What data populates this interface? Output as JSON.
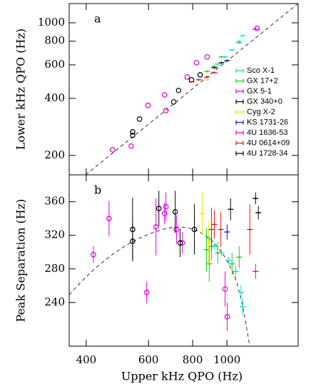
{
  "chart_data": [
    {
      "type": "scatter",
      "panel_label": "a",
      "ylabel": "Lower kHz QPO (Hz)",
      "xlog": true,
      "ylog": true,
      "xlim": [
        358,
        1590
      ],
      "ylim": [
        158,
        1263
      ],
      "yticks": [
        200,
        400,
        600,
        800,
        1000
      ],
      "legend": "right",
      "series": [
        {
          "name": "Sco X-1",
          "color": "#00e0e0",
          "marker": "cross",
          "x": [
            942,
            988,
            1034,
            1083,
            1108
          ],
          "y": [
            606,
            661,
            720,
            799,
            856
          ]
        },
        {
          "name": "GX 17+2",
          "color": "#22cc22",
          "marker": "cross",
          "x": [
            879,
            921,
            965,
            1083
          ],
          "y": [
            555,
            590,
            661,
            785
          ]
        },
        {
          "name": "GX 5-1",
          "color": "#e000e0",
          "marker": "circle",
          "x": [
            475,
            536,
            598,
            672,
            666,
            772,
            820,
            879,
            1216
          ],
          "y": [
            214,
            224,
            367,
            345,
            417,
            518,
            616,
            661,
            934
          ]
        },
        {
          "name": "GX 340+0",
          "color": "#000000",
          "marker": "circle",
          "x": [
            541,
            541,
            566,
            707,
            730,
            794,
            840
          ],
          "y": [
            255,
            266,
            311,
            383,
            440,
            501,
            532
          ]
        },
        {
          "name": "Cyg X-2",
          "color": "#e8e800",
          "marker": "cross",
          "x": [
            879
          ],
          "y": [
            501
          ]
        },
        {
          "name": "KS 1731-26",
          "color": "#1010e0",
          "marker": "cross",
          "x": [
            1001
          ],
          "y": [
            632
          ]
        },
        {
          "name": "4U 1636-53",
          "color": "#d010d0",
          "marker": "cross",
          "x": [
            1205
          ],
          "y": [
            926
          ]
        },
        {
          "name": "4U 0614+09",
          "color": "#ee1010",
          "marker": "cross",
          "x": [
            794,
            832,
            879,
            921
          ],
          "y": [
            488,
            501,
            518,
            546
          ]
        },
        {
          "name": "4U 1728-34",
          "color": "#000000",
          "marker": "cross",
          "x": [
            921,
            965
          ],
          "y": [
            580,
            616
          ]
        }
      ]
    },
    {
      "type": "scatter",
      "panel_label": "b",
      "ylabel": "Peak Separation (Hz)",
      "xlabel": "Upper kHz QPO (Hz)",
      "xlog": true,
      "xlim": [
        358,
        1590
      ],
      "ylim": [
        188,
        392
      ],
      "xticks": [
        400,
        600,
        800,
        1000
      ],
      "yticks": [
        240,
        280,
        320,
        360
      ],
      "series": [
        {
          "color": "#00e0e0",
          "marker": "cross",
          "x": [
            891,
            921,
            965,
            1010,
            1058,
            1096,
            1108
          ],
          "y": [
            316,
            307,
            299,
            290,
            277,
            252,
            235
          ],
          "yerr": [
            4,
            4,
            4,
            4,
            7,
            9,
            10
          ]
        },
        {
          "color": "#22cc22",
          "marker": "cross",
          "x": [
            875,
            891,
            905,
            942,
            1034,
            1083
          ],
          "y": [
            303,
            286,
            307,
            299,
            286,
            294
          ],
          "yerr": [
            26,
            21,
            17,
            13,
            13,
            13
          ]
        },
        {
          "color": "#e000e0",
          "marker": "circle",
          "x": [
            419,
            464,
            593,
            630,
            666,
            672,
            720,
            748,
            988,
            1002
          ],
          "y": [
            297,
            340,
            252,
            330,
            346,
            354,
            327,
            311,
            256,
            223
          ],
          "yerr": [
            10,
            21,
            13,
            34,
            13,
            17,
            17,
            13,
            21,
            17
          ]
        },
        {
          "color": "#000000",
          "marker": "circle",
          "x": [
            541,
            541,
            642,
            714,
            737,
            809
          ],
          "y": [
            327,
            313,
            352,
            348,
            311,
            327
          ],
          "yerr": [
            38,
            21,
            21,
            25,
            17,
            30
          ]
        },
        {
          "color": "#e8e800",
          "marker": "cross",
          "x": [
            851,
            887
          ],
          "y": [
            346,
            311
          ],
          "yerr": [
            26,
            26
          ]
        },
        {
          "color": "#1010e0",
          "marker": "cross",
          "x": [
            1001
          ],
          "y": [
            324
          ],
          "yerr": [
            9
          ]
        },
        {
          "color": "#d010d0",
          "marker": "cross",
          "x": [
            1205
          ],
          "y": [
            277
          ],
          "yerr": [
            9
          ]
        },
        {
          "color": "#ee1010",
          "marker": "cross",
          "x": [
            904,
            921,
            961,
            1161
          ],
          "y": [
            327,
            333,
            327,
            327
          ],
          "yerr": [
            26,
            17,
            21,
            30
          ]
        },
        {
          "color": "#000000",
          "marker": "cross",
          "x": [
            1024,
            1205,
            1227
          ],
          "y": [
            351,
            364,
            347
          ],
          "yerr": [
            13,
            7,
            8
          ]
        }
      ]
    }
  ]
}
